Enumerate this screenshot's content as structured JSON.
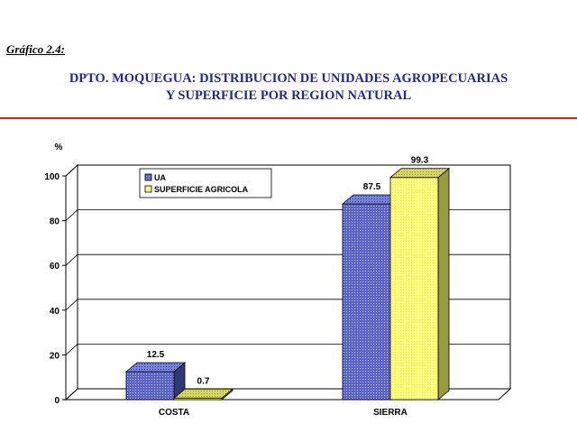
{
  "header": {
    "figure_label": "Gráfico 2.4:",
    "title_line1": "DPTO. MOQUEGUA: DISTRIBUCION DE UNIDADES AGROPECUARIAS",
    "title_line2": "Y SUPERFICIE POR REGION NATURAL"
  },
  "colors": {
    "title": "#1f2a8c",
    "rule": "#e02020",
    "ua": "#5b63c8",
    "superficie": "#ffff80"
  },
  "chart_data": {
    "type": "bar",
    "ylabel": "%",
    "ylim": [
      0,
      100
    ],
    "yticks": [
      0,
      20,
      40,
      60,
      80,
      100
    ],
    "grid": true,
    "legend_position": "top-left",
    "categories": [
      "COSTA",
      "SIERRA"
    ],
    "series": [
      {
        "name": "UA",
        "values": [
          12.5,
          87.5
        ],
        "color": "#5b63c8",
        "side": "#303878",
        "pattern": "dots"
      },
      {
        "name": "SUPERFICIE AGRICOLA",
        "values": [
          0.7,
          99.3
        ],
        "color": "#ffff80",
        "side": "#9a9a40",
        "pattern": "dots-light"
      }
    ]
  }
}
